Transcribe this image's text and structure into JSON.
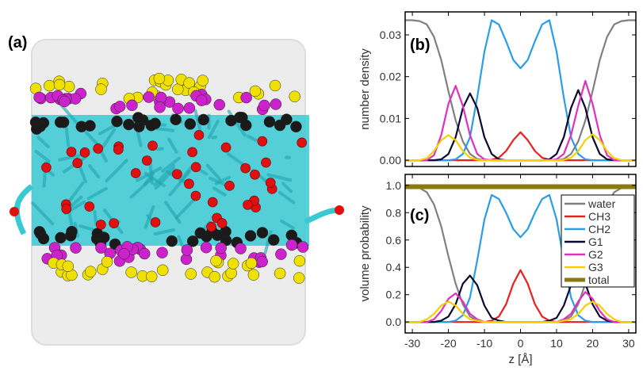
{
  "panel_a": {
    "label": "(a)",
    "description_colors": {
      "water": "#e9e9e9",
      "tails": "#33d6dd",
      "red_spheres": "#e01010",
      "black_spheres": "#1a1a1a",
      "magenta_spheres": "#cc22cc",
      "yellow_spheres": "#f0e000"
    }
  },
  "colors": {
    "water": "#808080",
    "CH3": "#e82020",
    "CH2": "#2a9ce8",
    "G1": "#0a0a30",
    "G2": "#e030c0",
    "G3": "#f4d000",
    "total": "#8a7a10"
  },
  "chart_data": [
    {
      "type": "line",
      "panel_label": "(b)",
      "ylabel": "number density",
      "xlabel": "",
      "xlim": [
        -32,
        32
      ],
      "ylim": [
        -0.0015,
        0.0355
      ],
      "yticks": [
        0.0,
        0.01,
        0.02,
        0.03
      ],
      "ytick_labels": [
        "0.00",
        "0.01",
        "0.02",
        "0.03"
      ],
      "xticks": [
        -30,
        -20,
        -10,
        0,
        10,
        20,
        30
      ],
      "x": [
        -32,
        -30,
        -28,
        -26,
        -24,
        -22,
        -20,
        -18,
        -16,
        -14,
        -12,
        -10,
        -8,
        -6,
        -4,
        -2,
        0,
        2,
        4,
        6,
        8,
        10,
        12,
        14,
        16,
        18,
        20,
        22,
        24,
        26,
        28,
        30,
        32
      ],
      "series": [
        {
          "name": "water",
          "values": [
            0.0335,
            0.0335,
            0.0333,
            0.0325,
            0.0295,
            0.024,
            0.0165,
            0.0095,
            0.0045,
            0.0015,
            0.0003,
            0,
            0,
            0,
            0,
            0,
            0,
            0,
            0,
            0,
            0,
            0,
            0.0003,
            0.0015,
            0.0045,
            0.0095,
            0.0165,
            0.024,
            0.0295,
            0.0325,
            0.0333,
            0.0335,
            0.0335
          ]
        },
        {
          "name": "CH3",
          "values": [
            0,
            0,
            0,
            0,
            0,
            0,
            0,
            0,
            0,
            0,
            0,
            0,
            0.0001,
            0.0006,
            0.0022,
            0.0048,
            0.0067,
            0.0048,
            0.0022,
            0.0006,
            0.0001,
            0,
            0,
            0,
            0,
            0,
            0,
            0,
            0,
            0,
            0,
            0,
            0
          ]
        },
        {
          "name": "CH2",
          "values": [
            0,
            0,
            0,
            0,
            0,
            0,
            0,
            0.0002,
            0.0015,
            0.0055,
            0.015,
            0.026,
            0.0335,
            0.0325,
            0.0285,
            0.024,
            0.022,
            0.024,
            0.0285,
            0.0325,
            0.0335,
            0.026,
            0.015,
            0.0055,
            0.0015,
            0.0002,
            0,
            0,
            0,
            0,
            0,
            0,
            0
          ]
        },
        {
          "name": "G1",
          "values": [
            0,
            0,
            0,
            0,
            0,
            0.0002,
            0.0015,
            0.0055,
            0.0125,
            0.016,
            0.0125,
            0.0055,
            0.0015,
            0.0002,
            0,
            0,
            0,
            0,
            0,
            0,
            0.0002,
            0.0015,
            0.0055,
            0.0125,
            0.0168,
            0.0125,
            0.0055,
            0.0015,
            0.0002,
            0,
            0,
            0,
            0
          ]
        },
        {
          "name": "G2",
          "values": [
            0,
            0,
            0,
            0,
            0.0012,
            0.006,
            0.0135,
            0.0178,
            0.013,
            0.006,
            0.0015,
            0.0002,
            0,
            0,
            0,
            0,
            0,
            0,
            0,
            0,
            0,
            0.0002,
            0.0015,
            0.006,
            0.013,
            0.019,
            0.0135,
            0.006,
            0.0012,
            0,
            0,
            0,
            0
          ]
        },
        {
          "name": "G3",
          "values": [
            0,
            0,
            0,
            0.0005,
            0.0022,
            0.0048,
            0.006,
            0.0048,
            0.0022,
            0.0006,
            0.0001,
            0,
            0,
            0,
            0,
            0,
            0,
            0,
            0,
            0,
            0,
            0,
            0.0001,
            0.0006,
            0.0022,
            0.0048,
            0.0062,
            0.0048,
            0.0022,
            0.0005,
            0,
            0,
            0
          ]
        }
      ]
    },
    {
      "type": "line",
      "panel_label": "(c)",
      "ylabel": "volume probability",
      "xlabel": "z [Å]",
      "xlim": [
        -32,
        32
      ],
      "ylim": [
        -0.08,
        1.08
      ],
      "yticks": [
        0.0,
        0.2,
        0.4,
        0.6,
        0.8,
        1.0
      ],
      "ytick_labels": [
        "0.0",
        "0.2",
        "0.4",
        "0.6",
        "0.8",
        "1.0"
      ],
      "xticks": [
        -30,
        -20,
        -10,
        0,
        10,
        20,
        30
      ],
      "xtick_labels": [
        "-30",
        "-20",
        "-10",
        "0",
        "10",
        "20",
        "30"
      ],
      "legend_placement": "right",
      "x": [
        -32,
        -30,
        -28,
        -26,
        -24,
        -22,
        -20,
        -18,
        -16,
        -14,
        -12,
        -10,
        -8,
        -6,
        -4,
        -2,
        0,
        2,
        4,
        6,
        8,
        10,
        12,
        14,
        16,
        18,
        20,
        22,
        24,
        26,
        28,
        30,
        32
      ],
      "series": [
        {
          "name": "water",
          "values": [
            0.99,
            0.99,
            0.98,
            0.95,
            0.86,
            0.7,
            0.48,
            0.28,
            0.13,
            0.04,
            0.01,
            0,
            0,
            0,
            0,
            0,
            0,
            0,
            0,
            0,
            0,
            0,
            0.01,
            0.04,
            0.13,
            0.28,
            0.48,
            0.7,
            0.86,
            0.95,
            0.98,
            0.99,
            0.99
          ]
        },
        {
          "name": "CH3",
          "values": [
            0,
            0,
            0,
            0,
            0,
            0,
            0,
            0,
            0,
            0,
            0,
            0,
            0.01,
            0.04,
            0.13,
            0.28,
            0.38,
            0.28,
            0.13,
            0.04,
            0.01,
            0,
            0,
            0,
            0,
            0,
            0,
            0,
            0,
            0,
            0,
            0,
            0
          ]
        },
        {
          "name": "CH2",
          "values": [
            0,
            0,
            0,
            0,
            0,
            0,
            0,
            0.01,
            0.05,
            0.18,
            0.45,
            0.75,
            0.93,
            0.9,
            0.8,
            0.68,
            0.62,
            0.68,
            0.8,
            0.9,
            0.93,
            0.75,
            0.45,
            0.18,
            0.05,
            0.01,
            0,
            0,
            0,
            0,
            0,
            0,
            0
          ]
        },
        {
          "name": "G1",
          "values": [
            0,
            0,
            0,
            0,
            0,
            0.01,
            0.04,
            0.13,
            0.28,
            0.34,
            0.27,
            0.12,
            0.03,
            0.01,
            0,
            0,
            0,
            0,
            0,
            0,
            0.01,
            0.03,
            0.12,
            0.27,
            0.36,
            0.28,
            0.13,
            0.04,
            0.01,
            0,
            0,
            0,
            0
          ]
        },
        {
          "name": "G2",
          "values": [
            0,
            0,
            0,
            0,
            0.02,
            0.08,
            0.17,
            0.21,
            0.15,
            0.06,
            0.02,
            0,
            0,
            0,
            0,
            0,
            0,
            0,
            0,
            0,
            0,
            0,
            0.02,
            0.06,
            0.15,
            0.22,
            0.17,
            0.08,
            0.02,
            0,
            0,
            0,
            0
          ]
        },
        {
          "name": "G3",
          "values": [
            0,
            0,
            0,
            0.02,
            0.06,
            0.12,
            0.15,
            0.12,
            0.06,
            0.02,
            0.01,
            0,
            0,
            0,
            0,
            0,
            0,
            0,
            0,
            0,
            0,
            0,
            0.01,
            0.02,
            0.06,
            0.12,
            0.15,
            0.12,
            0.06,
            0.02,
            0,
            0,
            0
          ]
        },
        {
          "name": "total",
          "values": [
            0.99,
            0.99,
            0.99,
            0.99,
            0.99,
            0.99,
            0.99,
            0.99,
            0.99,
            0.99,
            0.99,
            0.99,
            0.99,
            0.99,
            0.99,
            0.99,
            0.99,
            0.99,
            0.99,
            0.99,
            0.99,
            0.99,
            0.99,
            0.99,
            0.99,
            0.99,
            0.99,
            0.99,
            0.99,
            0.99,
            0.99,
            0.99,
            0.99
          ]
        }
      ]
    }
  ]
}
